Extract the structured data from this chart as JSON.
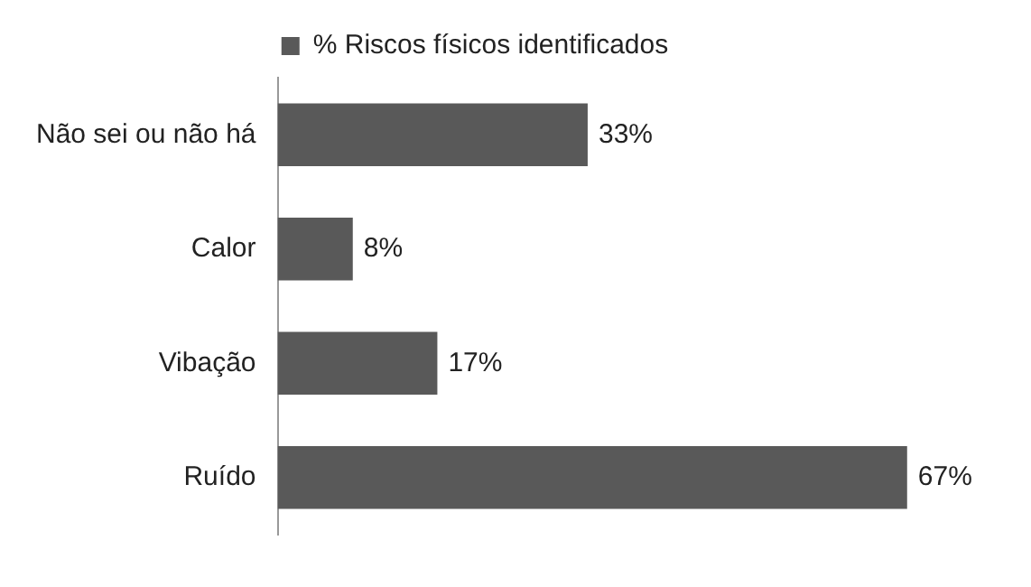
{
  "chart_data": {
    "type": "bar",
    "orientation": "horizontal",
    "categories": [
      "Não sei ou não há",
      "Calor",
      "Vibação",
      "Ruído"
    ],
    "series": [
      {
        "name": "% Riscos físicos identificados",
        "color": "#595959",
        "values": [
          33,
          8,
          17,
          67
        ],
        "value_labels": [
          "33%",
          "8%",
          "17%",
          "67%"
        ]
      }
    ],
    "legend": "top",
    "grid": false,
    "tick_labels": "y"
  }
}
